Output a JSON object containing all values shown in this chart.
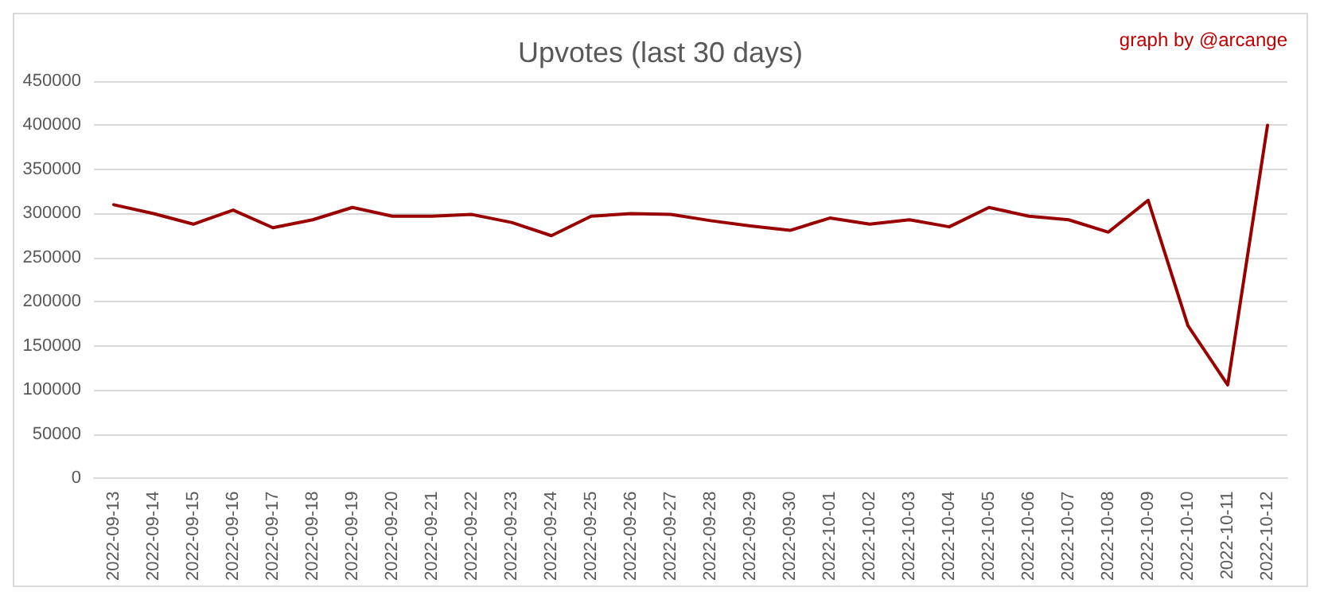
{
  "chart_data": {
    "type": "line",
    "title": "Upvotes (last 30 days)",
    "annotations": [
      "graph by @arcange"
    ],
    "categories": [
      "2022-09-13",
      "2022-09-14",
      "2022-09-15",
      "2022-09-16",
      "2022-09-17",
      "2022-09-18",
      "2022-09-19",
      "2022-09-20",
      "2022-09-21",
      "2022-09-22",
      "2022-09-23",
      "2022-09-24",
      "2022-09-25",
      "2022-09-26",
      "2022-09-27",
      "2022-09-28",
      "2022-09-29",
      "2022-09-30",
      "2022-10-01",
      "2022-10-02",
      "2022-10-03",
      "2022-10-04",
      "2022-10-05",
      "2022-10-06",
      "2022-10-07",
      "2022-10-08",
      "2022-10-09",
      "2022-10-10",
      "2022-10-11",
      "2022-10-12"
    ],
    "series": [
      {
        "color": "#990000",
        "values": [
          310000,
          300000,
          288000,
          304000,
          284000,
          293000,
          307000,
          297000,
          297000,
          299000,
          290000,
          275000,
          297000,
          300000,
          299000,
          292000,
          286000,
          281000,
          295000,
          288000,
          293000,
          285000,
          307000,
          297000,
          293000,
          279000,
          315000,
          173000,
          106000,
          400000
        ]
      }
    ],
    "ylim": [
      0,
      450000
    ],
    "yticks": [
      0,
      50000,
      100000,
      150000,
      200000,
      250000,
      300000,
      350000,
      400000,
      450000
    ],
    "grid": "y",
    "marker": "none",
    "line_style": "solid"
  }
}
